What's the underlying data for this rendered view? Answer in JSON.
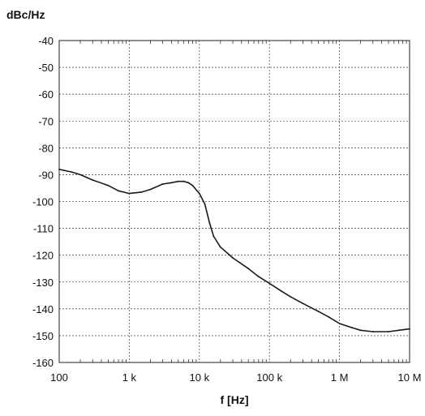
{
  "chart_data": {
    "type": "line",
    "title": "",
    "ylabel": "dBc/Hz",
    "xlabel": "f [Hz]",
    "x_scale": "log",
    "xlim": [
      100,
      10000000
    ],
    "ylim": [
      -160,
      -40
    ],
    "x_ticks": [
      {
        "value": 100,
        "label": "100"
      },
      {
        "value": 1000,
        "label": "1 k"
      },
      {
        "value": 10000,
        "label": "10 k"
      },
      {
        "value": 100000,
        "label": "100 k"
      },
      {
        "value": 1000000,
        "label": "1 M"
      },
      {
        "value": 10000000,
        "label": "10 M"
      }
    ],
    "y_ticks": [
      {
        "value": -40,
        "label": "-40"
      },
      {
        "value": -50,
        "label": "-50"
      },
      {
        "value": -60,
        "label": "-60"
      },
      {
        "value": -70,
        "label": "-70"
      },
      {
        "value": -80,
        "label": "-80"
      },
      {
        "value": -90,
        "label": "-90"
      },
      {
        "value": -100,
        "label": "-100"
      },
      {
        "value": -110,
        "label": "-110"
      },
      {
        "value": -120,
        "label": "-120"
      },
      {
        "value": -130,
        "label": "-130"
      },
      {
        "value": -140,
        "label": "-140"
      },
      {
        "value": -150,
        "label": "-150"
      },
      {
        "value": -160,
        "label": "-160"
      }
    ],
    "grid": true,
    "grid_style": "dotted",
    "series": [
      {
        "color": "#1a1a1a",
        "x": [
          100,
          150,
          200,
          300,
          500,
          700,
          1000,
          1500,
          2000,
          3000,
          4000,
          5000,
          6000,
          7000,
          8000,
          10000,
          12000,
          14000,
          16000,
          20000,
          30000,
          50000,
          70000,
          100000,
          150000,
          200000,
          300000,
          500000,
          700000,
          1000000,
          1500000,
          2000000,
          3000000,
          5000000,
          7000000,
          10000000
        ],
        "y": [
          -88,
          -89,
          -90,
          -92,
          -94,
          -96,
          -97,
          -96.5,
          -95.5,
          -93.5,
          -93,
          -92.5,
          -92.5,
          -93,
          -94,
          -97,
          -101,
          -108,
          -113,
          -117,
          -121,
          -125,
          -128,
          -130.5,
          -133.5,
          -135.5,
          -138,
          -141,
          -143,
          -145.5,
          -147,
          -148,
          -148.5,
          -148.5,
          -148,
          -147.5
        ]
      }
    ]
  }
}
